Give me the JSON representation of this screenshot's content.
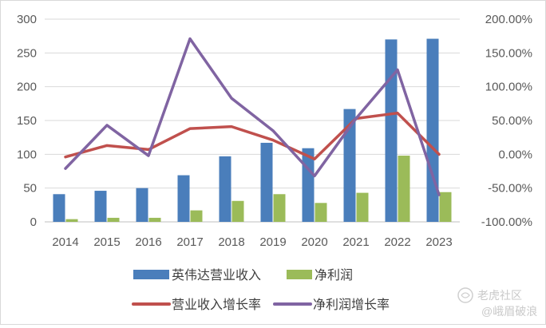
{
  "chart_data": {
    "type": "bar",
    "categories": [
      "2014",
      "2015",
      "2016",
      "2017",
      "2018",
      "2019",
      "2020",
      "2021",
      "2022",
      "2023"
    ],
    "left_axis": {
      "ylim": [
        0,
        300
      ],
      "ticks": [
        "0",
        "50",
        "100",
        "150",
        "200",
        "250",
        "300"
      ]
    },
    "right_axis": {
      "ylim": [
        -100,
        200
      ],
      "ticks": [
        "-100.00%",
        "-50.00%",
        "0.00%",
        "50.00%",
        "100.00%",
        "150.00%",
        "200.00%"
      ]
    },
    "series": [
      {
        "name": "英伟达营业收入",
        "type": "bar",
        "axis": "left",
        "color": "#4a7ebb",
        "values": [
          41,
          46,
          50,
          69,
          97,
          117,
          109,
          167,
          270,
          271
        ]
      },
      {
        "name": "净利润",
        "type": "bar",
        "axis": "left",
        "color": "#9bbb59",
        "values": [
          4,
          6,
          6,
          17,
          31,
          41,
          28,
          43,
          98,
          44
        ]
      },
      {
        "name": "营业收入增长率",
        "type": "line",
        "axis": "right",
        "color": "#c0504d",
        "values": [
          -4,
          13,
          7,
          38,
          41,
          21,
          -7,
          53,
          61,
          0
        ]
      },
      {
        "name": "净利润增长率",
        "type": "line",
        "axis": "right",
        "color": "#8064a2",
        "values": [
          -21,
          43,
          -2,
          171,
          83,
          35,
          -32,
          53,
          125,
          -60
        ]
      }
    ],
    "grid": true,
    "legend_position": "bottom"
  },
  "watermark": {
    "brand": "老虎社区",
    "author": "@峨眉破浪"
  }
}
